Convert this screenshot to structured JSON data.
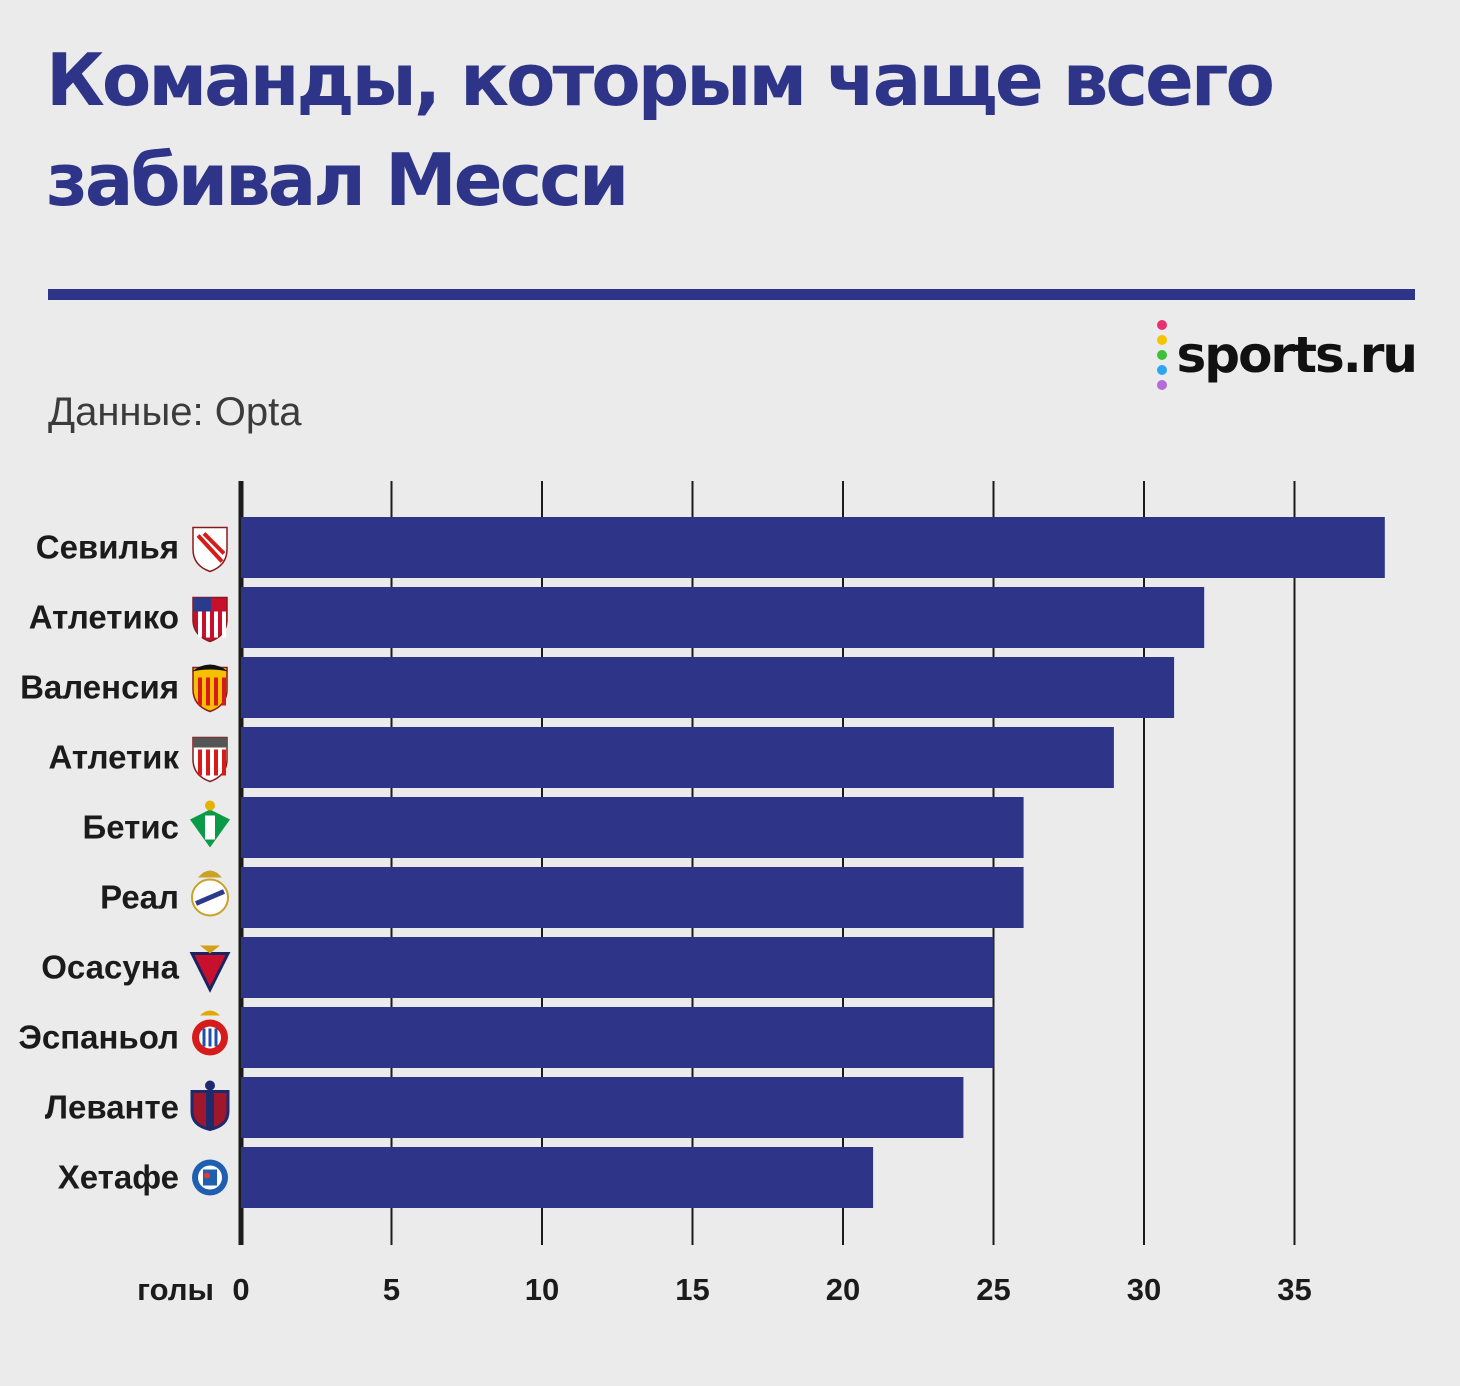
{
  "title": "Команды, которым чаще всего забивал Месси",
  "source": "Данные: Opta",
  "brand": {
    "name": "sports.ru",
    "dot_colors": [
      "#e8316f",
      "#f5c400",
      "#3cc13b",
      "#2ba6f0",
      "#b46ad8"
    ]
  },
  "colors": {
    "bar": "#2e3588",
    "text": "#1b1b1b",
    "grid": "#1b1b1b"
  },
  "chart_data": {
    "type": "bar",
    "orientation": "horizontal",
    "xlabel": "голы",
    "xlim": [
      0,
      38
    ],
    "xticks": [
      0,
      5,
      10,
      15,
      20,
      25,
      30,
      35
    ],
    "grid": true,
    "categories": [
      "Севилья",
      "Атлетико",
      "Валенсия",
      "Атлетик",
      "Бетис",
      "Реал",
      "Осасуна",
      "Эспаньол",
      "Леванте",
      "Хетафе"
    ],
    "values": [
      38,
      32,
      31,
      29,
      26,
      26,
      25,
      25,
      24,
      21
    ],
    "icons": [
      "sevilla-crest-icon",
      "atletico-crest-icon",
      "valencia-crest-icon",
      "athletic-crest-icon",
      "betis-crest-icon",
      "real-madrid-crest-icon",
      "osasuna-crest-icon",
      "espanyol-crest-icon",
      "levante-crest-icon",
      "getafe-crest-icon"
    ]
  }
}
